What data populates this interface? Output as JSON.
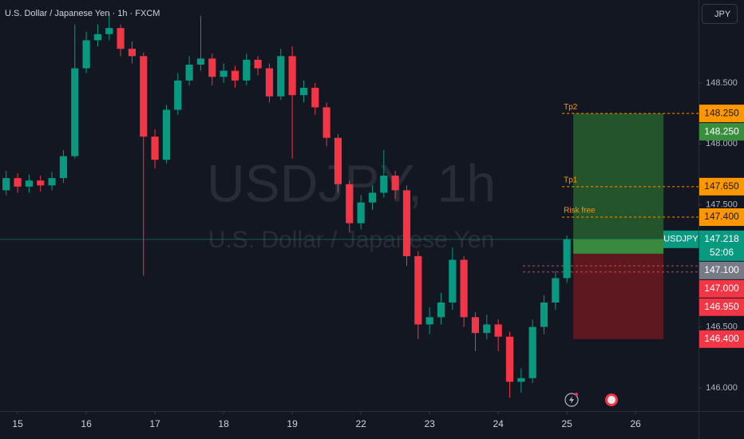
{
  "header": {
    "title": "U.S. Dollar / Japanese Yen · 1h · FXCM",
    "currency": "JPY"
  },
  "watermark": {
    "symbol": "USDJPY, 1h",
    "name": "U.S. Dollar / Japanese Yen"
  },
  "chart_data": {
    "type": "candlestick",
    "up_color": "#089981",
    "down_color": "#f23645",
    "open": [
      147.62,
      147.72,
      147.65,
      147.7,
      147.66,
      147.72,
      147.9,
      148.62,
      148.85,
      148.9,
      148.95,
      148.78,
      148.72,
      148.06,
      147.87,
      148.28,
      148.52,
      148.65,
      148.7,
      148.55,
      148.6,
      148.52,
      148.69,
      148.62,
      148.39,
      148.72,
      148.4,
      148.46,
      148.3,
      148.05,
      147.67,
      147.35,
      147.52,
      147.6,
      147.74,
      147.62,
      147.08,
      146.52,
      146.58,
      146.7,
      147.05,
      146.58,
      146.45,
      146.52,
      146.42,
      146.05,
      146.08,
      146.5,
      146.7,
      146.9
    ],
    "high": [
      147.78,
      147.76,
      147.75,
      147.74,
      147.77,
      147.95,
      148.98,
      148.92,
      148.98,
      149.08,
      148.98,
      148.84,
      148.75,
      148.12,
      148.32,
      148.58,
      148.72,
      149.05,
      148.74,
      148.66,
      148.64,
      148.74,
      148.72,
      148.66,
      148.78,
      148.8,
      148.52,
      148.5,
      148.34,
      148.08,
      147.7,
      147.58,
      147.66,
      147.95,
      147.78,
      147.66,
      147.12,
      146.66,
      146.78,
      147.15,
      147.08,
      146.62,
      146.6,
      146.56,
      146.46,
      146.16,
      146.56,
      146.76,
      146.96,
      147.25
    ],
    "low": [
      147.58,
      147.6,
      147.6,
      147.61,
      147.62,
      147.68,
      147.88,
      148.58,
      148.8,
      148.85,
      148.72,
      148.66,
      146.92,
      147.8,
      147.84,
      148.24,
      148.48,
      148.6,
      148.48,
      148.5,
      148.46,
      148.48,
      148.56,
      148.34,
      148.36,
      147.88,
      148.34,
      148.24,
      147.98,
      147.6,
      147.28,
      147.3,
      147.46,
      147.56,
      147.55,
      147.0,
      146.4,
      146.44,
      146.52,
      146.64,
      146.5,
      146.3,
      146.4,
      146.3,
      145.92,
      145.96,
      146.04,
      146.44,
      146.64,
      146.86
    ],
    "close": [
      147.72,
      147.65,
      147.7,
      147.66,
      147.72,
      147.9,
      148.62,
      148.85,
      148.9,
      148.95,
      148.78,
      148.72,
      148.06,
      147.87,
      148.28,
      148.52,
      148.65,
      148.7,
      148.55,
      148.6,
      148.52,
      148.69,
      148.62,
      148.39,
      148.72,
      148.4,
      148.46,
      148.3,
      148.05,
      147.67,
      147.35,
      147.52,
      147.6,
      147.74,
      147.62,
      147.08,
      146.52,
      146.58,
      146.7,
      147.05,
      146.58,
      146.45,
      146.52,
      146.42,
      146.05,
      146.08,
      146.5,
      146.7,
      146.9,
      147.218
    ],
    "ylim": [
      145.81,
      149.18
    ],
    "yticks": [
      {
        "value": 146,
        "label": "146.000"
      },
      {
        "value": 146.5,
        "label": "146.500"
      },
      {
        "value": 147.5,
        "label": "147.500"
      },
      {
        "value": 148,
        "label": "148.000"
      },
      {
        "value": 148.5,
        "label": "148.500"
      }
    ],
    "xlim": [
      -0.54,
      60.5
    ],
    "xticks": [
      {
        "value": 1,
        "label": "15"
      },
      {
        "value": 7,
        "label": "16"
      },
      {
        "value": 13,
        "label": "17"
      },
      {
        "value": 19,
        "label": "18"
      },
      {
        "value": 25,
        "label": "19"
      },
      {
        "value": 31,
        "label": "22"
      },
      {
        "value": 37,
        "label": "23"
      },
      {
        "value": 43,
        "label": "24"
      },
      {
        "value": 49,
        "label": "25"
      },
      {
        "value": 55,
        "label": "26"
      }
    ],
    "levels": [
      {
        "name": "Tp2",
        "value": 148.25,
        "label": "148.250"
      },
      {
        "name": "Tp1",
        "value": 147.65,
        "label": "147.650"
      },
      {
        "name": "Risk free",
        "value": 147.4,
        "label": "147.400"
      }
    ],
    "position": {
      "target": {
        "value": 148.25,
        "label": "148.250"
      },
      "entry": {
        "value": 147.1,
        "label": "147.100"
      },
      "stop": {
        "value": 146.4,
        "label": "146.400"
      }
    },
    "orders": [
      {
        "value": 147.0,
        "label": "147.000"
      },
      {
        "value": 146.95,
        "label": "146.950"
      }
    ],
    "last_price": {
      "symbol": "USDJPY",
      "value": 147.218,
      "label": "147.218",
      "countdown": "52:06"
    }
  }
}
